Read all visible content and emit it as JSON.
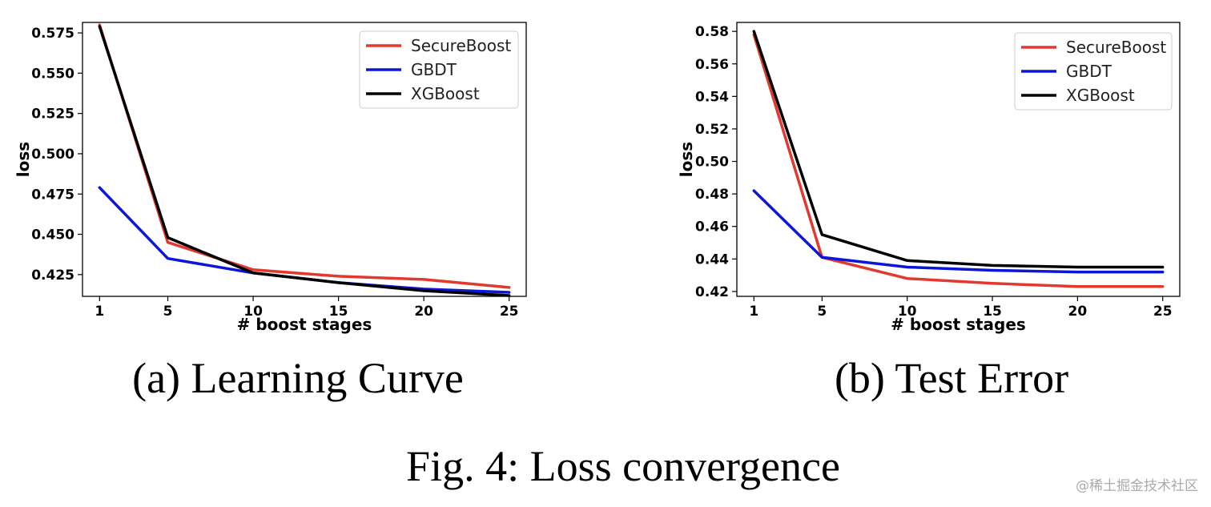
{
  "figure_caption": "Fig. 4: Loss convergence",
  "watermark": "@稀土掘金技术社区",
  "colors": {
    "SecureBoost": "#e03a2f",
    "GBDT": "#0c16d8",
    "XGBoost": "#000000"
  },
  "chart_data": [
    {
      "type": "line",
      "id": "a",
      "subcaption": "(a) Learning Curve",
      "xlabel": "# boost stages",
      "ylabel": "loss",
      "x": [
        1,
        5,
        10,
        15,
        20,
        25
      ],
      "xticks": [
        "1",
        "5",
        "10",
        "15",
        "20",
        "25"
      ],
      "xlim": [
        0.0,
        26.0
      ],
      "ylim": [
        0.4115,
        0.5815
      ],
      "yticks": [
        0.425,
        0.45,
        0.475,
        0.5,
        0.525,
        0.55,
        0.575
      ],
      "ytick_labels": [
        "0.425",
        "0.450",
        "0.475",
        "0.500",
        "0.525",
        "0.550",
        "0.575"
      ],
      "legend_position": "top-right",
      "series": [
        {
          "name": "SecureBoost",
          "values": [
            0.58,
            0.445,
            0.428,
            0.424,
            0.422,
            0.417
          ]
        },
        {
          "name": "GBDT",
          "values": [
            0.479,
            0.435,
            0.426,
            0.42,
            0.416,
            0.414
          ]
        },
        {
          "name": "XGBoost",
          "values": [
            0.579,
            0.448,
            0.426,
            0.42,
            0.415,
            0.412
          ]
        }
      ]
    },
    {
      "type": "line",
      "id": "b",
      "subcaption": "(b) Test Error",
      "xlabel": "# boost stages",
      "ylabel": "loss",
      "x": [
        1,
        5,
        10,
        15,
        20,
        25
      ],
      "xticks": [
        "1",
        "5",
        "10",
        "15",
        "20",
        "25"
      ],
      "xlim": [
        0.0,
        26.0
      ],
      "ylim": [
        0.417,
        0.5855
      ],
      "yticks": [
        0.42,
        0.44,
        0.46,
        0.48,
        0.5,
        0.52,
        0.54,
        0.56,
        0.58
      ],
      "ytick_labels": [
        "0.42",
        "0.44",
        "0.46",
        "0.48",
        "0.50",
        "0.52",
        "0.54",
        "0.56",
        "0.58"
      ],
      "legend_position": "top-right",
      "series": [
        {
          "name": "SecureBoost",
          "values": [
            0.578,
            0.441,
            0.428,
            0.425,
            0.423,
            0.423
          ]
        },
        {
          "name": "GBDT",
          "values": [
            0.482,
            0.441,
            0.435,
            0.433,
            0.432,
            0.432
          ]
        },
        {
          "name": "XGBoost",
          "values": [
            0.58,
            0.455,
            0.439,
            0.436,
            0.435,
            0.435
          ]
        }
      ]
    }
  ]
}
